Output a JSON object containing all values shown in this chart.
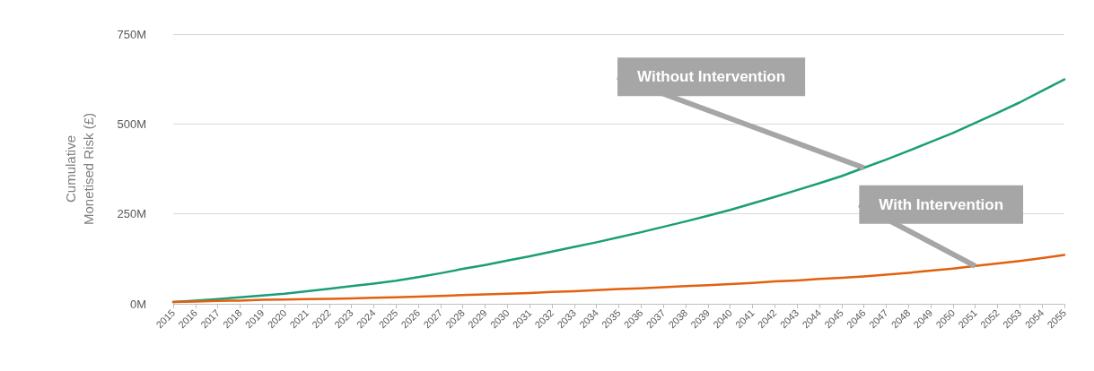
{
  "chart_data": {
    "type": "line",
    "ylabel": "Cumulative Monetised Risk (£)",
    "categories": [
      "2015",
      "2016",
      "2017",
      "2018",
      "2019",
      "2020",
      "2021",
      "2022",
      "2023",
      "2024",
      "2025",
      "2026",
      "2027",
      "2028",
      "2029",
      "2030",
      "2031",
      "2032",
      "2033",
      "2034",
      "2035",
      "2036",
      "2037",
      "2038",
      "2039",
      "2040",
      "2041",
      "2042",
      "2043",
      "2044",
      "2045",
      "2046",
      "2047",
      "2048",
      "2049",
      "2050",
      "2051",
      "2052",
      "2053",
      "2054",
      "2055"
    ],
    "series": [
      {
        "color": "#1a9e77",
        "values": [
          5,
          9,
          13,
          18,
          23,
          28,
          35,
          42,
          49,
          56,
          64,
          74,
          85,
          97,
          108,
          120,
          132,
          145,
          158,
          171,
          185,
          199,
          214,
          229,
          245,
          261,
          279,
          297,
          316,
          335,
          355,
          378,
          401,
          425,
          450,
          475,
          503,
          531,
          560,
          592,
          624
        ]
      },
      {
        "color": "#e3600e",
        "values": [
          5,
          6,
          8,
          9,
          11,
          12,
          13,
          14,
          15,
          17,
          18,
          20,
          22,
          24,
          26,
          28,
          30,
          33,
          35,
          38,
          41,
          43,
          46,
          49,
          52,
          55,
          58,
          62,
          65,
          69,
          72,
          76,
          81,
          86,
          92,
          98,
          105,
          112,
          119,
          127,
          136
        ]
      }
    ],
    "ylim": [
      0,
      750
    ],
    "yticks": [
      {
        "value": 0,
        "label": "0M"
      },
      {
        "value": 250,
        "label": "250M"
      },
      {
        "value": 500,
        "label": "500M"
      },
      {
        "value": 750,
        "label": "750M"
      }
    ],
    "grid": "y",
    "marker": "none",
    "line_style": "solid",
    "annotations": [
      {
        "text": "Without Intervention",
        "x": "2046",
        "y": 378
      },
      {
        "text": "With Intervention",
        "x": "2051",
        "y": 105
      }
    ]
  }
}
